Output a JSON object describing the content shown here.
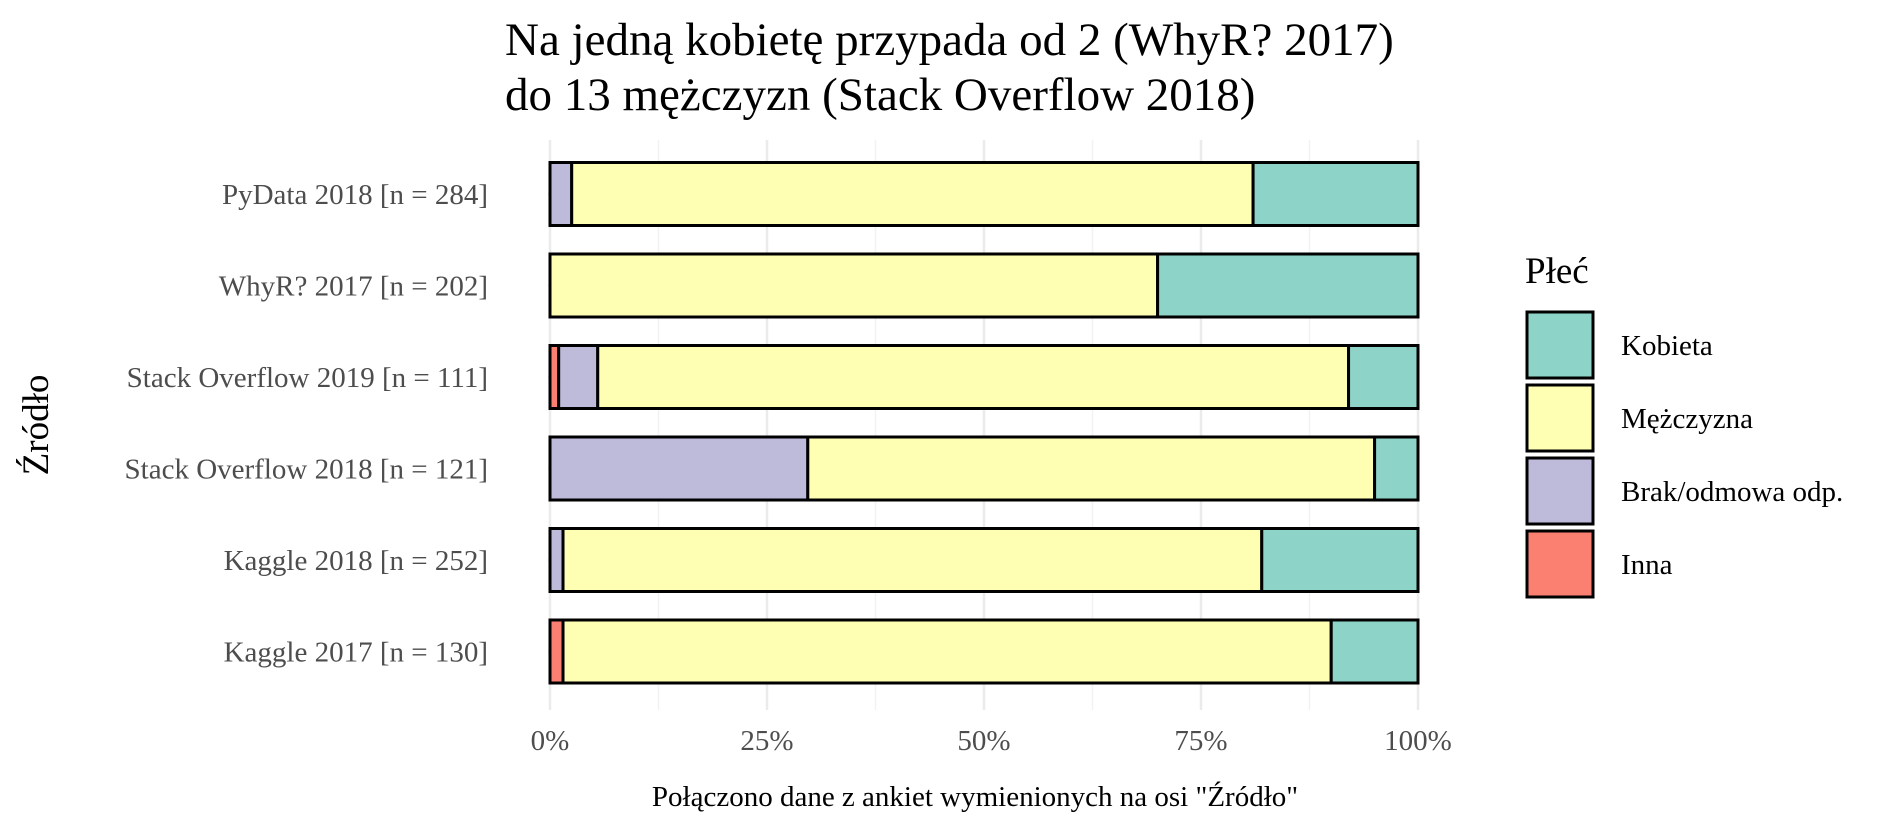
{
  "chart_data": {
    "type": "bar",
    "orientation": "horizontal",
    "stacked": true,
    "percent": true,
    "title_lines": [
      "Na jedną kobietę przypada od 2 (WhyR? 2017)",
      "do 13 mężczyzn (Stack Overflow 2018)"
    ],
    "xlabel": "Połączono dane z ankiet wymienionych na osi \"Źródło\"",
    "ylabel": "Źródło",
    "xlim": [
      0,
      1
    ],
    "x_ticks": [
      0,
      0.25,
      0.5,
      0.75,
      1
    ],
    "x_tick_labels": [
      "0%",
      "25%",
      "50%",
      "75%",
      "100%"
    ],
    "grid": true,
    "legend": {
      "title": "Płeć",
      "position": "right"
    },
    "categories": [
      "PyData 2018 [n = 284]",
      "WhyR? 2017 [n = 202]",
      "Stack Overflow 2019 [n = 111]",
      "Stack Overflow 2018 [n = 121]",
      "Kaggle 2018 [n = 252]",
      "Kaggle 2017 [n = 130]"
    ],
    "stack_order": [
      "Inna",
      "Brak/odmowa odp.",
      "Mężczyzna",
      "Kobieta"
    ],
    "series": [
      {
        "name": "Kobieta",
        "color": "#8DD3C7",
        "values": [
          0.19,
          0.3,
          0.08,
          0.05,
          0.18,
          0.1
        ]
      },
      {
        "name": "Mężczyzna",
        "color": "#FFFFB3",
        "values": [
          0.785,
          0.7,
          0.865,
          0.653,
          0.805,
          0.885
        ]
      },
      {
        "name": "Brak/odmowa odp.",
        "color": "#BEBADA",
        "values": [
          0.025,
          0.0,
          0.045,
          0.297,
          0.015,
          0.0
        ]
      },
      {
        "name": "Inna",
        "color": "#FB8072",
        "values": [
          0.0,
          0.0,
          0.01,
          0.0,
          0.0,
          0.015
        ]
      }
    ]
  }
}
